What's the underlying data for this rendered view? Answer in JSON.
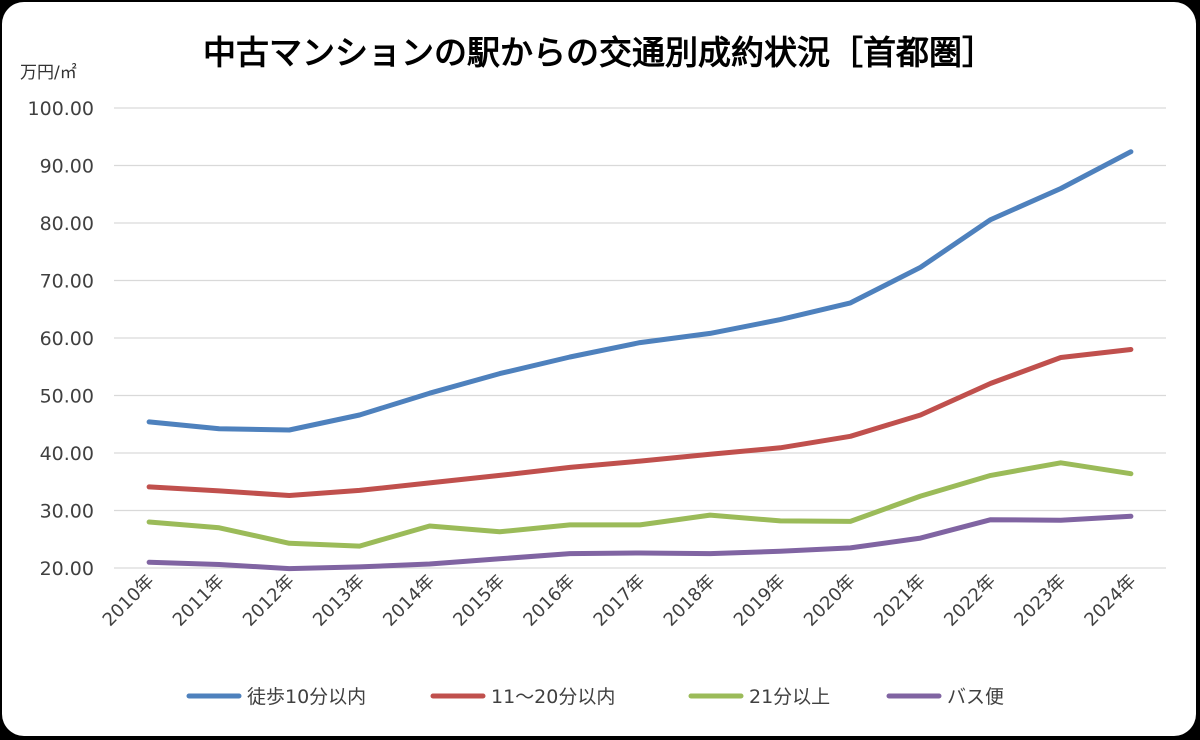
{
  "chart_data": {
    "type": "line",
    "title": "中古マンションの駅からの交通別成約状況［首都圏］",
    "ylabel": "万円/㎡",
    "ylim": [
      20,
      100
    ],
    "yticks": [
      "20.00",
      "30.00",
      "40.00",
      "50.00",
      "60.00",
      "70.00",
      "80.00",
      "90.00",
      "100.00"
    ],
    "grid": true,
    "legend": "bottom",
    "categories": [
      "2010年",
      "2011年",
      "2012年",
      "2013年",
      "2014年",
      "2015年",
      "2016年",
      "2017年",
      "2018年",
      "2019年",
      "2020年",
      "2021年",
      "2022年",
      "2023年",
      "2024年"
    ],
    "series": [
      {
        "name": "徒歩10分以内",
        "color": "#4e81bd",
        "values": [
          45.4,
          44.2,
          44.0,
          46.6,
          50.4,
          53.8,
          56.7,
          59.2,
          60.8,
          63.2,
          66.1,
          72.3,
          80.6,
          86.0,
          92.4
        ]
      },
      {
        "name": "11～20分以内",
        "color": "#c0504d",
        "values": [
          34.1,
          33.4,
          32.6,
          33.5,
          34.8,
          36.1,
          37.5,
          38.6,
          39.8,
          40.9,
          42.9,
          46.6,
          52.1,
          56.6,
          58.0
        ]
      },
      {
        "name": "21分以上",
        "color": "#9bbb59",
        "values": [
          28.0,
          27.0,
          24.3,
          23.8,
          27.3,
          26.3,
          27.5,
          27.5,
          29.2,
          28.2,
          28.1,
          32.5,
          36.1,
          38.3,
          36.4
        ]
      },
      {
        "name": "バス便",
        "color": "#8064a2",
        "values": [
          21.0,
          20.6,
          19.9,
          20.2,
          20.7,
          21.6,
          22.5,
          22.6,
          22.5,
          22.9,
          23.5,
          25.2,
          28.4,
          28.3,
          29.0
        ]
      }
    ]
  }
}
